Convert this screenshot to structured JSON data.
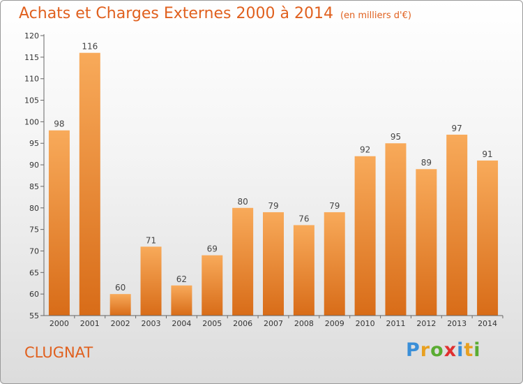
{
  "title": "Achats et Charges Externes 2000 à 2014",
  "subtitle": "(en milliers d'€)",
  "commune": "CLUGNAT",
  "logo": [
    "P",
    "r",
    "o",
    "x",
    "i",
    "t",
    "i"
  ],
  "colors": {
    "bar_light": "#f8aa5a",
    "bar_dark": "#d86c18",
    "title": "#e0601e"
  },
  "chart_data": {
    "type": "bar",
    "title": "Achats et Charges Externes 2000 à 2014",
    "subtitle": "(en milliers d'€)",
    "categories": [
      "2000",
      "2001",
      "2002",
      "2003",
      "2004",
      "2005",
      "2006",
      "2007",
      "2008",
      "2009",
      "2010",
      "2011",
      "2012",
      "2013",
      "2014"
    ],
    "values": [
      98,
      116,
      60,
      71,
      62,
      69,
      80,
      79,
      76,
      79,
      92,
      95,
      89,
      97,
      91
    ],
    "ylim": [
      55,
      120
    ],
    "yticks": [
      55,
      60,
      65,
      70,
      75,
      80,
      85,
      90,
      95,
      100,
      105,
      110,
      115,
      120
    ],
    "grid": false,
    "xlabel": "",
    "ylabel": ""
  }
}
